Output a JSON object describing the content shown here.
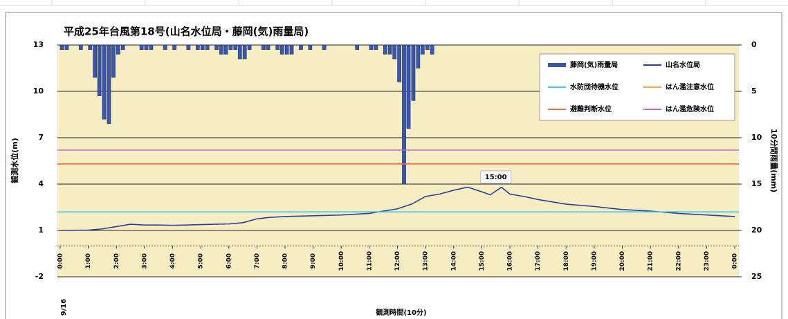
{
  "chart_data": {
    "type": "rain-level",
    "title": "平成25年台風第18号(山名水位局・藤岡(気)雨量局)",
    "ylabel": "観測水位(m)",
    "y2label": "10分間雨量(mm)",
    "xlabel": "観測時間(10分)",
    "date_label": "9/16",
    "xlim": [
      0,
      24
    ],
    "xticks": [
      {
        "value": 0,
        "label": "0:00"
      },
      {
        "value": 1,
        "label": "1:00"
      },
      {
        "value": 2,
        "label": "2:00"
      },
      {
        "value": 3,
        "label": "3:00"
      },
      {
        "value": 4,
        "label": "4:00"
      },
      {
        "value": 5,
        "label": "5:00"
      },
      {
        "value": 6,
        "label": "6:00"
      },
      {
        "value": 7,
        "label": "7:00"
      },
      {
        "value": 8,
        "label": "8:00"
      },
      {
        "value": 9,
        "label": "9:00"
      },
      {
        "value": 10,
        "label": "10:00"
      },
      {
        "value": 11,
        "label": "11:00"
      },
      {
        "value": 12,
        "label": "12:00"
      },
      {
        "value": 13,
        "label": "13:00"
      },
      {
        "value": 14,
        "label": "14:00"
      },
      {
        "value": 15,
        "label": "15:00"
      },
      {
        "value": 16,
        "label": "16:00"
      },
      {
        "value": 17,
        "label": "17:00"
      },
      {
        "value": 18,
        "label": "18:00"
      },
      {
        "value": 19,
        "label": "19:00"
      },
      {
        "value": 20,
        "label": "20:00"
      },
      {
        "value": 21,
        "label": "21:00"
      },
      {
        "value": 22,
        "label": "22:00"
      },
      {
        "value": 23,
        "label": "23:00"
      },
      {
        "value": 24,
        "label": "0:00"
      }
    ],
    "ylim": [
      -2,
      13
    ],
    "yticks": [
      -2,
      1,
      4,
      7,
      10,
      13
    ],
    "y2lim": [
      0,
      25
    ],
    "y2ticks": [
      0,
      5,
      10,
      15,
      20,
      25
    ],
    "y2_reversed": true,
    "x_axis_at": 0,
    "grid": true,
    "legend": "top-right",
    "series": [
      {
        "name": "藤岡(気)雨量局",
        "kind": "bar",
        "axis": "y2",
        "color": "#3a56a8",
        "x": [
          0,
          0.17,
          0.67,
          1,
          1.17,
          1.33,
          1.5,
          1.67,
          1.83,
          2,
          2.17,
          2.83,
          3,
          3.17,
          3.67,
          4,
          4.5,
          4.83,
          5,
          5.17,
          5.5,
          5.67,
          5.83,
          6,
          6.17,
          6.33,
          6.5,
          6.67,
          7.17,
          7.33,
          7.67,
          7.83,
          8,
          8.17,
          8.5,
          8.83,
          9.33,
          10.5,
          11,
          11.17,
          11.5,
          11.67,
          11.83,
          12,
          12.17,
          12.33,
          12.5,
          12.67,
          12.83,
          13,
          13.17
        ],
        "values": [
          0.5,
          0.5,
          0.5,
          0.5,
          3.5,
          5.5,
          8,
          8.5,
          3.5,
          1,
          0.5,
          0.5,
          0.5,
          0.5,
          0.5,
          0.5,
          0.5,
          0.5,
          0.5,
          0.5,
          0.5,
          1,
          1,
          0.5,
          0.5,
          1.5,
          1.5,
          0.5,
          0.5,
          0.5,
          0.5,
          1,
          1,
          1,
          0.5,
          0.5,
          0.5,
          0.5,
          0.5,
          0.5,
          1,
          1,
          1.5,
          4,
          15,
          9,
          6,
          2.5,
          1,
          0.5,
          1
        ]
      },
      {
        "name": "山名水位局",
        "kind": "line",
        "color": "#2b3f9a",
        "x": [
          0,
          1,
          1.5,
          2,
          2.5,
          3,
          3.5,
          4,
          4.5,
          5,
          5.5,
          6,
          6.5,
          7,
          7.5,
          8,
          9,
          10,
          11,
          11.5,
          12,
          12.5,
          13,
          13.5,
          14,
          14.5,
          15,
          15.3,
          15.7,
          16,
          16.5,
          17,
          17.5,
          18,
          19,
          20,
          21,
          22,
          23,
          24
        ],
        "values": [
          1.0,
          1.02,
          1.1,
          1.25,
          1.4,
          1.35,
          1.35,
          1.33,
          1.35,
          1.38,
          1.4,
          1.42,
          1.5,
          1.75,
          1.85,
          1.9,
          1.95,
          2.0,
          2.1,
          2.25,
          2.4,
          2.7,
          3.2,
          3.35,
          3.6,
          3.8,
          3.5,
          3.3,
          3.8,
          3.35,
          3.2,
          3.0,
          2.85,
          2.7,
          2.55,
          2.35,
          2.25,
          2.1,
          2.0,
          1.9
        ]
      },
      {
        "name": "水防団待機水位",
        "kind": "hline",
        "color": "#3cc8e8",
        "value": 2.2
      },
      {
        "name": "はん濫注意水位",
        "kind": "hline",
        "color": "#f5a640"
      },
      {
        "name": "避難判断水位",
        "kind": "hline",
        "color": "#f06a3a",
        "value": 5.3
      },
      {
        "name": "はん濫危険水位",
        "kind": "hline",
        "color": "#c068c8",
        "value": 6.2
      }
    ],
    "annotations": [
      {
        "text": "15:00",
        "x": 15.5,
        "y": 4.45
      }
    ]
  }
}
